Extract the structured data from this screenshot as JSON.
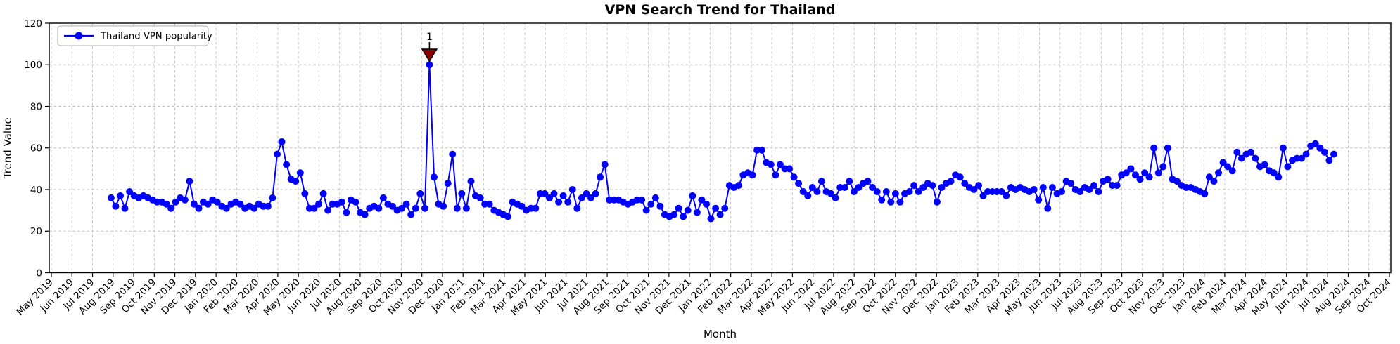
{
  "chart_data": {
    "type": "line",
    "title": "VPN Search Trend for Thailand",
    "xlabel": "Month",
    "ylabel": "Trend Value",
    "ylim": [
      0,
      120
    ],
    "y_ticks": [
      0,
      20,
      40,
      60,
      80,
      100,
      120
    ],
    "y_tick_labels": [
      "0",
      "20",
      "40",
      "60",
      "80",
      "100",
      "120"
    ],
    "x_tick_labels": [
      "May 2019",
      "Jun 2019",
      "Jul 2019",
      "Aug 2019",
      "Sep 2019",
      "Oct 2019",
      "Nov 2019",
      "Dec 2019",
      "Jan 2020",
      "Feb 2020",
      "Mar 2020",
      "Apr 2020",
      "May 2020",
      "Jun 2020",
      "Jul 2020",
      "Aug 2020",
      "Sep 2020",
      "Oct 2020",
      "Nov 2020",
      "Dec 2020",
      "Jan 2021",
      "Feb 2021",
      "Mar 2021",
      "Apr 2021",
      "May 2021",
      "Jun 2021",
      "Jul 2021",
      "Aug 2021",
      "Sep 2021",
      "Oct 2021",
      "Nov 2021",
      "Dec 2021",
      "Jan 2022",
      "Feb 2022",
      "Mar 2022",
      "Apr 2022",
      "May 2022",
      "Jun 2022",
      "Jul 2022",
      "Aug 2022",
      "Sep 2022",
      "Oct 2022",
      "Nov 2022",
      "Dec 2022",
      "Jan 2023",
      "Feb 2023",
      "Mar 2023",
      "Apr 2023",
      "May 2023",
      "Jun 2023",
      "Jul 2023",
      "Aug 2023",
      "Sep 2023",
      "Oct 2023",
      "Nov 2023",
      "Dec 2023",
      "Jan 2024",
      "Feb 2024",
      "Mar 2024",
      "Apr 2024",
      "May 2024",
      "Jun 2024",
      "Jul 2024",
      "Aug 2024",
      "Sep 2024",
      "Oct 2024"
    ],
    "grid": true,
    "grid_style": "dashed",
    "grid_color": "#bfbfbf",
    "legend": {
      "label": "Thailand VPN popularity",
      "position": "upper left"
    },
    "series_span_months": [
      2.9,
      62.3
    ],
    "series": [
      {
        "name": "Thailand VPN popularity",
        "color": "#0000ff",
        "marker": "circle",
        "values": [
          36,
          32,
          37,
          31,
          39,
          37,
          36,
          37,
          36,
          35,
          34,
          34,
          33,
          31,
          34,
          36,
          35,
          44,
          33,
          31,
          34,
          33,
          35,
          34,
          32,
          31,
          33,
          34,
          33,
          31,
          32,
          31,
          33,
          32,
          32,
          36,
          57,
          63,
          52,
          45,
          44,
          48,
          38,
          31,
          31,
          33,
          38,
          30,
          33,
          33,
          34,
          29,
          35,
          34,
          29,
          28,
          31,
          32,
          31,
          36,
          33,
          32,
          30,
          31,
          33,
          28,
          31,
          38,
          31,
          100,
          46,
          33,
          32,
          43,
          57,
          31,
          38,
          31,
          44,
          37,
          36,
          33,
          33,
          30,
          29,
          28,
          27,
          34,
          33,
          32,
          30,
          31,
          31,
          38,
          38,
          36,
          38,
          34,
          37,
          34,
          40,
          31,
          36,
          38,
          36,
          38,
          46,
          52,
          35,
          35,
          35,
          34,
          33,
          34,
          35,
          35,
          30,
          33,
          36,
          32,
          28,
          27,
          28,
          31,
          27,
          30,
          37,
          29,
          35,
          33,
          26,
          31,
          28,
          31,
          42,
          41,
          42,
          47,
          48,
          47,
          59,
          59,
          53,
          52,
          47,
          52,
          50,
          50,
          46,
          43,
          39,
          37,
          41,
          39,
          44,
          39,
          38,
          36,
          41,
          41,
          44,
          39,
          41,
          43,
          44,
          41,
          39,
          35,
          39,
          34,
          38,
          34,
          38,
          39,
          42,
          39,
          41,
          43,
          42,
          34,
          41,
          43,
          44,
          47,
          46,
          43,
          41,
          40,
          42,
          37,
          39,
          39,
          39,
          39,
          37,
          41,
          40,
          41,
          40,
          39,
          40,
          35,
          41,
          31,
          41,
          38,
          39,
          44,
          43,
          40,
          39,
          41,
          40,
          42,
          39,
          44,
          45,
          42,
          42,
          47,
          48,
          50,
          47,
          45,
          48,
          46,
          60,
          48,
          51,
          60,
          45,
          44,
          42,
          41,
          41,
          40,
          39,
          38,
          46,
          44,
          48,
          53,
          51,
          49,
          58,
          55,
          57,
          58,
          55,
          51,
          52,
          49,
          48,
          46,
          60,
          51,
          54,
          55,
          55,
          57,
          61,
          62,
          60,
          58,
          54,
          57
        ]
      }
    ],
    "annotation": {
      "text": "1",
      "point_index": 69,
      "value": 100,
      "marker": "triangle-down",
      "color": "#8b0000"
    }
  }
}
